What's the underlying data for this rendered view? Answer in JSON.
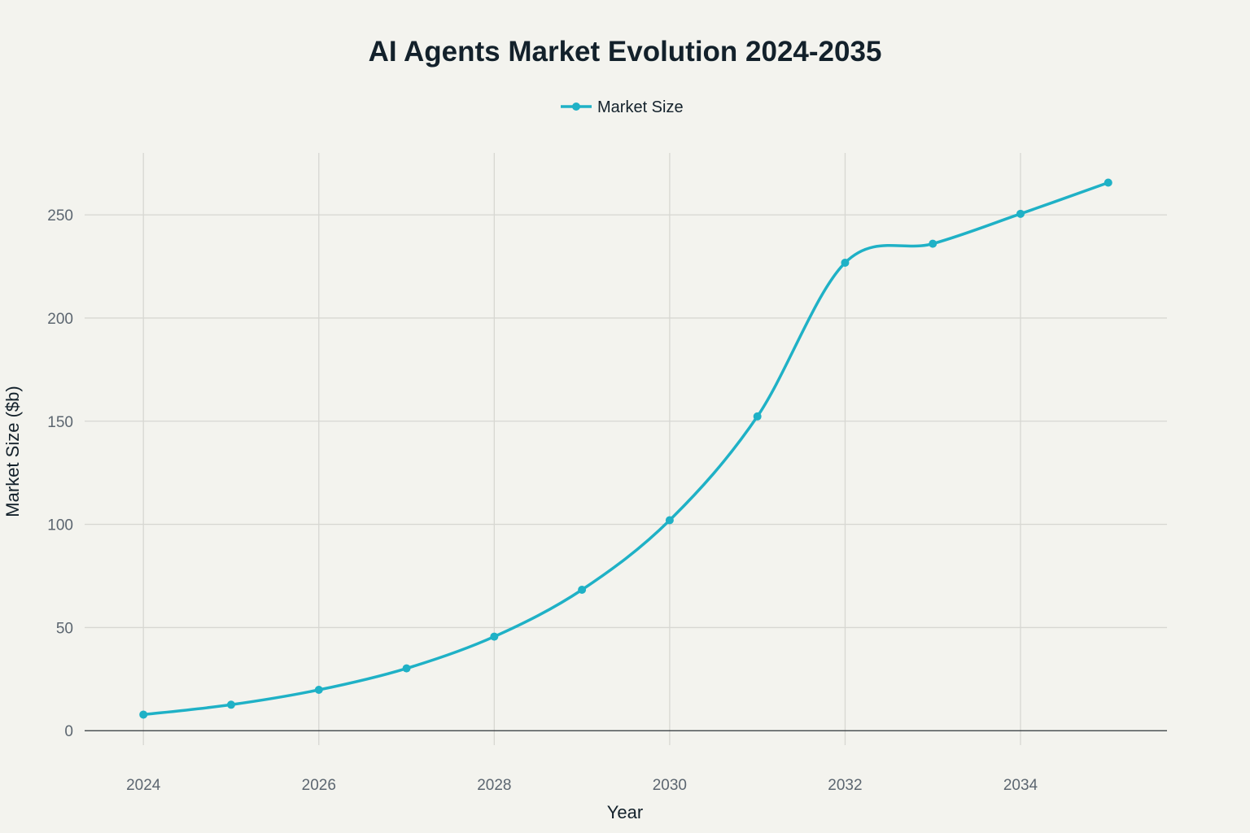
{
  "chart_data": {
    "type": "line",
    "title": "AI Agents Market Evolution 2024-2035",
    "xlabel": "Year",
    "ylabel": "Market Size ($b)",
    "xlim": [
      2023.33,
      2035.67
    ],
    "ylim": [
      -7,
      280
    ],
    "x_ticks": [
      2024,
      2026,
      2028,
      2030,
      2032,
      2034
    ],
    "x_tick_labels": [
      "2024",
      "2026",
      "2028",
      "2030",
      "2032",
      "2034"
    ],
    "y_ticks": [
      0,
      50,
      100,
      150,
      200,
      250
    ],
    "y_tick_labels": [
      "0",
      "50",
      "100",
      "150",
      "200",
      "250"
    ],
    "grid": true,
    "legend_position": "top-center",
    "x": [
      2024,
      2025,
      2026,
      2027,
      2028,
      2029,
      2030,
      2031,
      2032,
      2033,
      2034,
      2035
    ],
    "series": [
      {
        "name": "Market Size",
        "color": "#1fb1c6",
        "values": [
          7.8,
          12.6,
          19.8,
          30.2,
          45.6,
          68.3,
          102.0,
          152.3,
          226.8,
          236.0,
          250.5,
          265.6
        ]
      }
    ]
  }
}
